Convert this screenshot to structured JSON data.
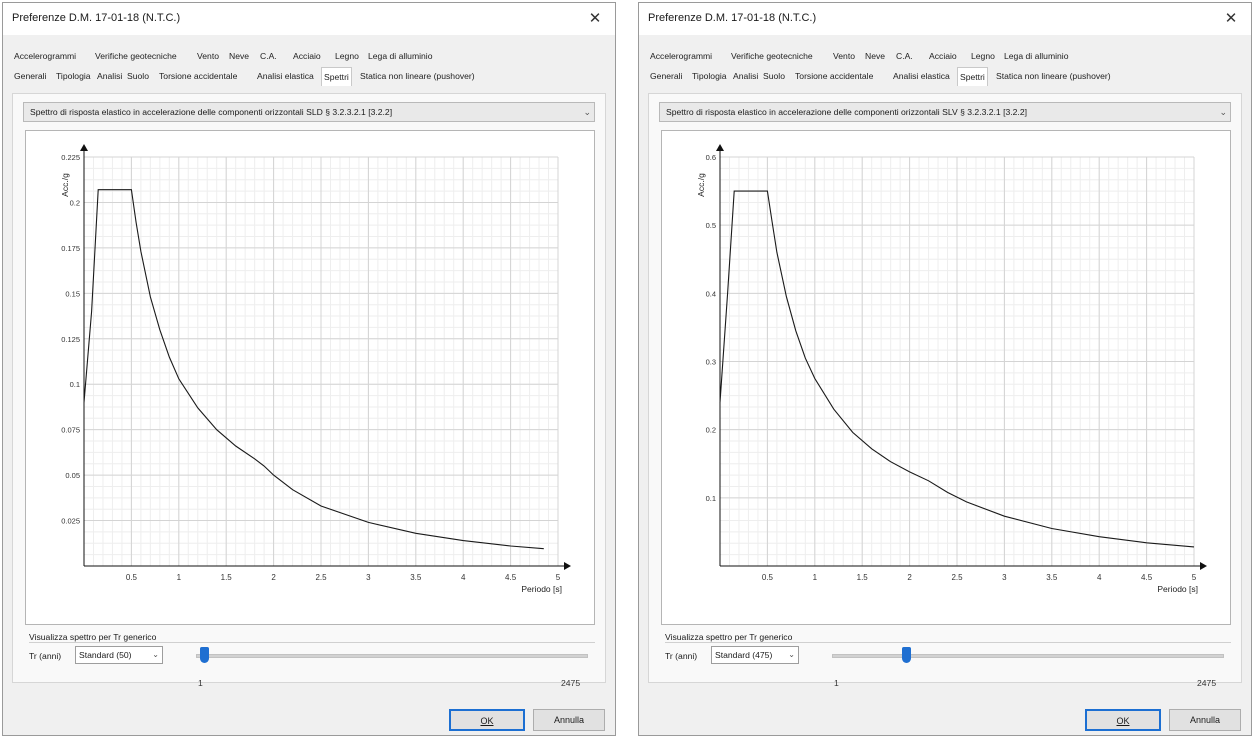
{
  "dialogs": [
    {
      "title": "Preferenze D.M. 17-01-18 (N.T.C.)",
      "tabs_row1": [
        "Accelerogrammi",
        "Verifiche geotecniche",
        "Vento",
        "Neve",
        "C.A.",
        "Acciaio",
        "Legno",
        "Lega di alluminio"
      ],
      "tabs_row2": [
        "Generali",
        "Tipologia",
        "Analisi",
        "Suolo",
        "Torsione accidentale",
        "Analisi elastica",
        "Spettri",
        "Statica non lineare (pushover)"
      ],
      "active_tab": "Spettri",
      "spectrum_select": "Spettro di risposta elastico in accelerazione delle componenti orizzontali SLD § 3.2.3.2.1 [3.2.2]",
      "group_label": "Visualizza spettro per Tr generico",
      "tr_label": "Tr (anni)",
      "tr_value": "Standard (50)",
      "slider_min": "1",
      "slider_max": "2475",
      "slider_fraction": 0.02,
      "ok_label": "OK",
      "cancel_label": "Annulla",
      "chart_data": {
        "type": "line",
        "ylabel": "Acc./g",
        "xlabel": "Periodo [s]",
        "x_ticks": [
          "0.5",
          "1",
          "1.5",
          "2",
          "2.5",
          "3",
          "3.5",
          "4",
          "4.5",
          "5"
        ],
        "y_ticks": [
          "0.025",
          "0.05",
          "0.075",
          "0.1",
          "0.125",
          "0.15",
          "0.175",
          "0.2",
          "0.225"
        ],
        "xlim": [
          0,
          5
        ],
        "ylim": [
          0,
          0.225
        ],
        "grid": true,
        "series": [
          {
            "x": [
              0,
              0.08,
              0.15,
              0.33,
              0.5,
              0.55,
              0.6,
              0.7,
              0.8,
              0.9,
              1.0,
              1.2,
              1.4,
              1.6,
              1.8,
              1.9,
              2.0,
              2.2,
              2.5,
              3.0,
              3.5,
              4.0,
              4.5,
              4.85
            ],
            "y": [
              0.09,
              0.14,
              0.207,
              0.207,
              0.207,
              0.189,
              0.173,
              0.148,
              0.13,
              0.115,
              0.103,
              0.087,
              0.075,
              0.066,
              0.059,
              0.055,
              0.05,
              0.042,
              0.033,
              0.024,
              0.018,
              0.014,
              0.011,
              0.0095
            ]
          }
        ]
      }
    },
    {
      "title": "Preferenze D.M. 17-01-18 (N.T.C.)",
      "tabs_row1": [
        "Accelerogrammi",
        "Verifiche geotecniche",
        "Vento",
        "Neve",
        "C.A.",
        "Acciaio",
        "Legno",
        "Lega di alluminio"
      ],
      "tabs_row2": [
        "Generali",
        "Tipologia",
        "Analisi",
        "Suolo",
        "Torsione accidentale",
        "Analisi elastica",
        "Spettri",
        "Statica non lineare (pushover)"
      ],
      "active_tab": "Spettri",
      "spectrum_select": "Spettro di risposta elastico in accelerazione delle componenti orizzontali SLV § 3.2.3.2.1 [3.2.2]",
      "group_label": "Visualizza spettro per Tr generico",
      "tr_label": "Tr (anni)",
      "tr_value": "Standard (475)",
      "slider_min": "1",
      "slider_max": "2475",
      "slider_fraction": 0.19,
      "ok_label": "OK",
      "cancel_label": "Annulla",
      "chart_data": {
        "type": "line",
        "ylabel": "Acc./g",
        "xlabel": "Periodo [s]",
        "x_ticks": [
          "0.5",
          "1",
          "1.5",
          "2",
          "2.5",
          "3",
          "3.5",
          "4",
          "4.5",
          "5"
        ],
        "y_ticks": [
          "0.1",
          "0.2",
          "0.3",
          "0.4",
          "0.5",
          "0.6"
        ],
        "xlim": [
          0,
          5
        ],
        "ylim": [
          0,
          0.6
        ],
        "grid": true,
        "series": [
          {
            "x": [
              0,
              0.08,
              0.15,
              0.33,
              0.5,
              0.55,
              0.6,
              0.7,
              0.8,
              0.9,
              1.0,
              1.2,
              1.4,
              1.6,
              1.8,
              2.0,
              2.2,
              2.4,
              2.6,
              3.0,
              3.5,
              4.0,
              4.5,
              5.0
            ],
            "y": [
              0.24,
              0.4,
              0.55,
              0.55,
              0.55,
              0.505,
              0.46,
              0.395,
              0.345,
              0.305,
              0.275,
              0.23,
              0.196,
              0.172,
              0.153,
              0.138,
              0.125,
              0.108,
              0.094,
              0.073,
              0.055,
              0.043,
              0.034,
              0.028
            ]
          }
        ]
      }
    }
  ]
}
